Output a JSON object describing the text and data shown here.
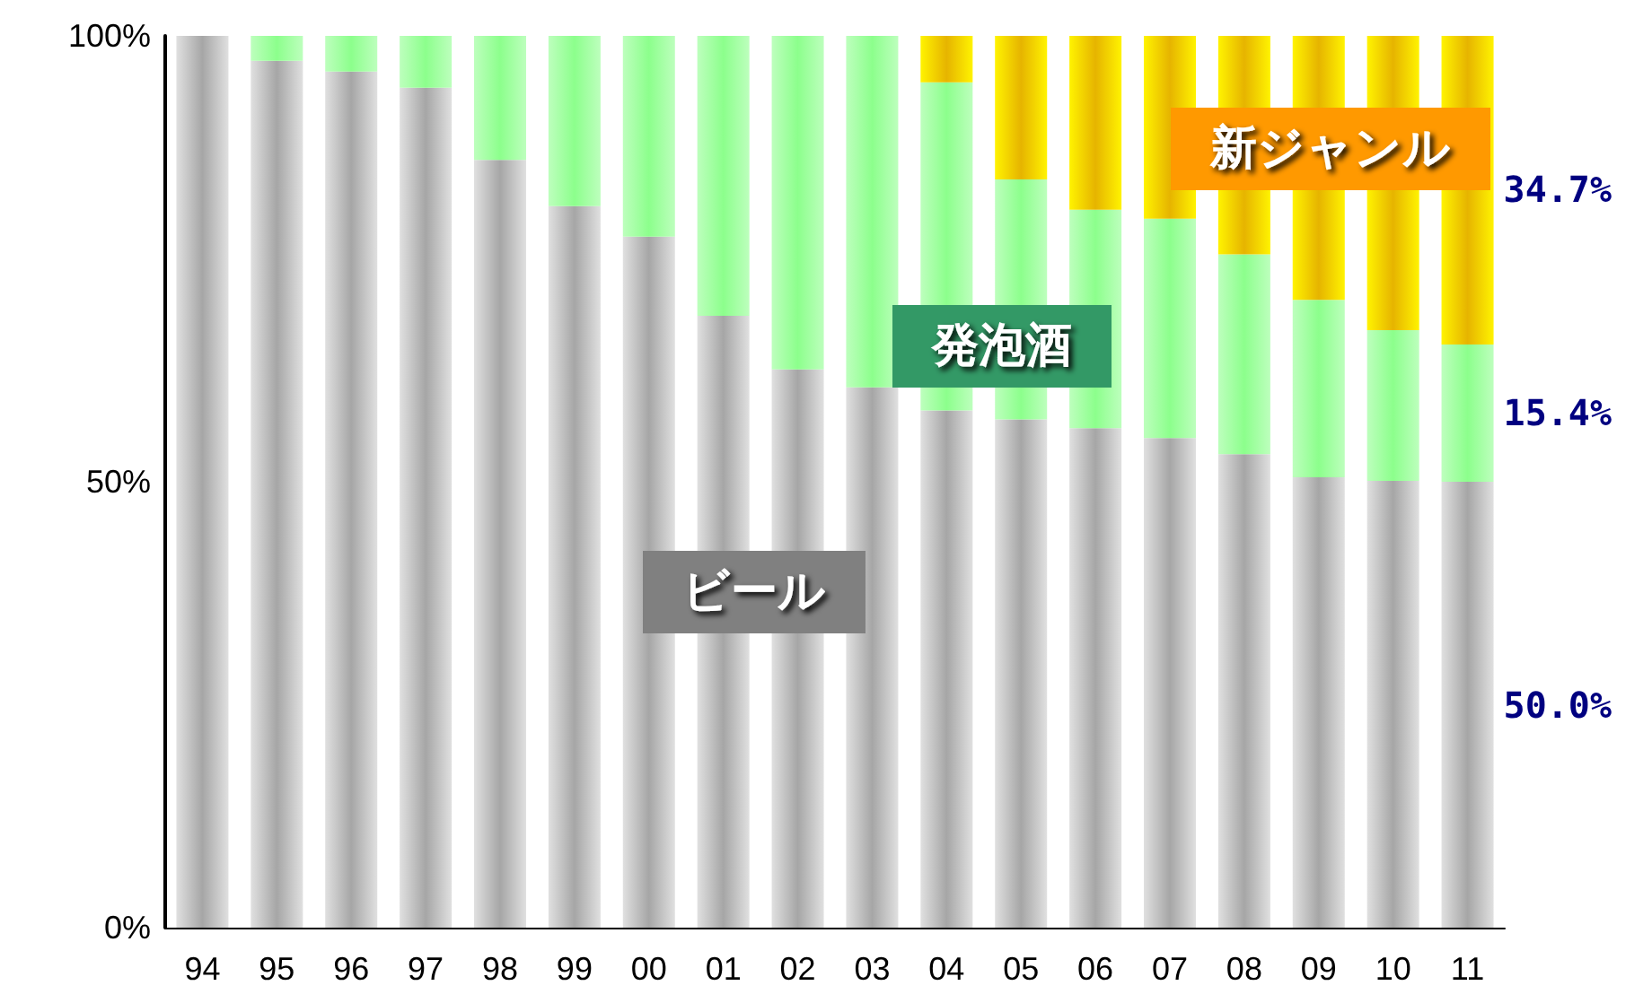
{
  "chart_data": {
    "type": "bar",
    "stacked": true,
    "categories": [
      "94",
      "95",
      "96",
      "97",
      "98",
      "99",
      "00",
      "01",
      "02",
      "03",
      "04",
      "05",
      "06",
      "07",
      "08",
      "09",
      "10",
      "11"
    ],
    "series": [
      {
        "name": "ビール",
        "color": "#a6a6a6",
        "values": [
          100,
          97.2,
          96.0,
          94.2,
          86.1,
          80.9,
          77.5,
          68.6,
          62.6,
          60.6,
          58,
          57,
          56,
          54.9,
          53.1,
          50.5,
          50.1,
          50.0
        ]
      },
      {
        "name": "発泡酒",
        "color": "#8cff8c",
        "values": [
          0,
          2.8,
          4.0,
          5.8,
          13.9,
          19.1,
          22.5,
          31.4,
          37.4,
          39.4,
          36.8,
          26.9,
          24.5,
          24.6,
          22.4,
          19.9,
          16.9,
          15.4
        ]
      },
      {
        "name": "新ジャンル",
        "color": "#e6b400",
        "values": [
          0,
          0,
          0,
          0,
          0,
          0,
          0,
          0,
          0,
          0,
          5.2,
          16.1,
          19.5,
          20.5,
          24.5,
          29.6,
          33.0,
          34.7
        ]
      }
    ],
    "annotations": [
      "34.7%",
      "15.4%",
      "50.0%"
    ],
    "ylim": [
      0,
      100
    ],
    "yticks": [
      {
        "value": 0,
        "label": "0%"
      },
      {
        "value": 50,
        "label": "50%"
      },
      {
        "value": 100,
        "label": "100%"
      }
    ],
    "grid": false,
    "legend": false
  }
}
